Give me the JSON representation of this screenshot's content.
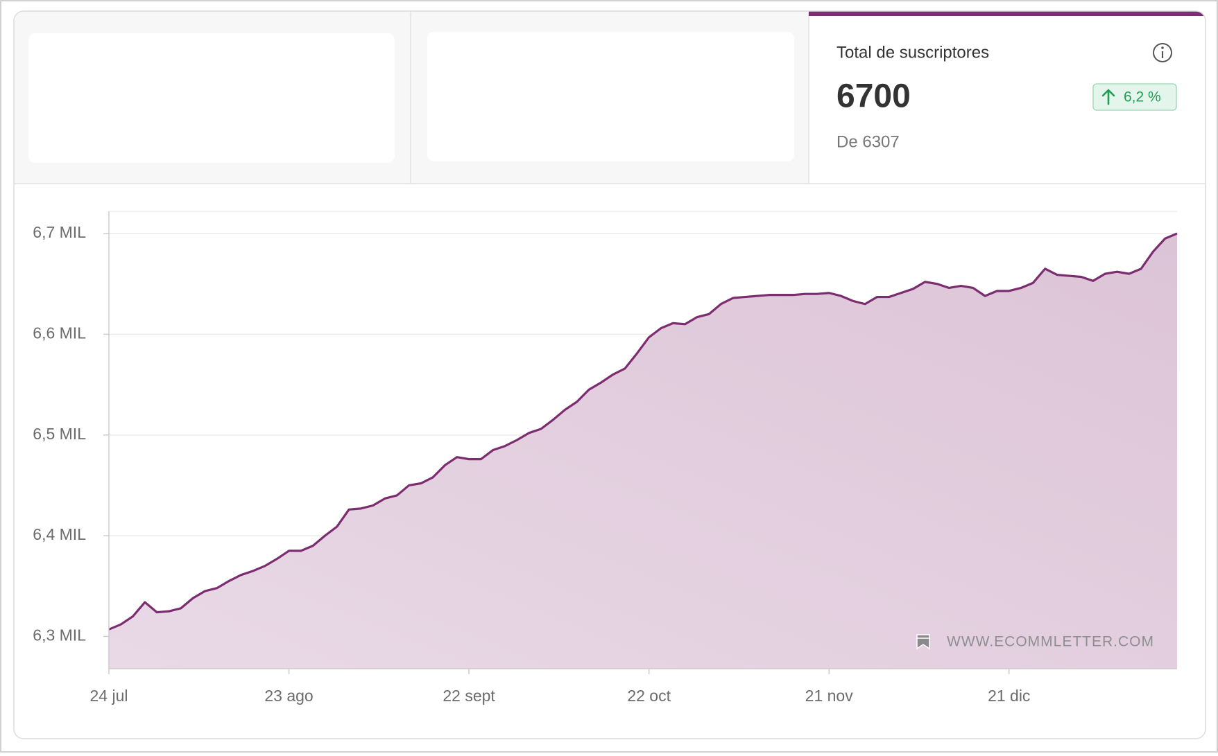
{
  "summary": {
    "title": "Total de suscriptores",
    "value": 6700,
    "change": "6,2 %",
    "previous": "De 6307"
  },
  "chart_data": {
    "type": "area",
    "color": "#7b2d6f",
    "grid": true,
    "watermark": "WWW.ECOMMLETTER.COM",
    "categories": [
      "24 jul",
      null,
      null,
      null,
      null,
      null,
      null,
      null,
      null,
      null,
      null,
      null,
      null,
      null,
      null,
      "23 ago",
      null,
      null,
      null,
      null,
      null,
      null,
      null,
      null,
      null,
      null,
      null,
      null,
      null,
      null,
      "22 sept",
      null,
      null,
      null,
      null,
      null,
      null,
      null,
      null,
      null,
      null,
      null,
      null,
      null,
      null,
      "22 oct",
      null,
      null,
      null,
      null,
      null,
      null,
      null,
      null,
      null,
      null,
      null,
      null,
      null,
      null,
      "21 nov",
      null,
      null,
      null,
      null,
      null,
      null,
      null,
      null,
      null,
      null,
      null,
      null,
      null,
      null,
      "21 dic",
      null,
      null,
      null,
      null,
      null,
      null,
      null,
      null,
      null,
      null,
      null,
      null,
      null,
      null
    ],
    "values": [
      6307,
      6312,
      6320,
      6334,
      6324,
      6325,
      6328,
      6338,
      6345,
      6348,
      6355,
      6361,
      6365,
      6370,
      6377,
      6385,
      6385,
      6390,
      6400,
      6409,
      6426,
      6427,
      6430,
      6437,
      6440,
      6450,
      6452,
      6458,
      6470,
      6478,
      6476,
      6476,
      6485,
      6489,
      6495,
      6502,
      6506,
      6515,
      6525,
      6533,
      6545,
      6552,
      6560,
      6566,
      6581,
      6597,
      6606,
      6611,
      6610,
      6617,
      6620,
      6630,
      6636,
      6637,
      6638,
      6639,
      6639,
      6639,
      6640,
      6640,
      6641,
      6638,
      6633,
      6630,
      6637,
      6637,
      6641,
      6645,
      6652,
      6650,
      6646,
      6648,
      6646,
      6638,
      6643,
      6643,
      6646,
      6651,
      6665,
      6659,
      6658,
      6657,
      6653,
      6660,
      6662,
      6660,
      6665,
      6682,
      6695,
      6700
    ],
    "ylim": [
      6268,
      6722
    ],
    "yticks": [
      {
        "value": 6300,
        "label": "6,3 MIL"
      },
      {
        "value": 6400,
        "label": "6,4 MIL"
      },
      {
        "value": 6500,
        "label": "6,5 MIL"
      },
      {
        "value": 6600,
        "label": "6,6 MIL"
      },
      {
        "value": 6700,
        "label": "6,7 MIL"
      }
    ]
  }
}
